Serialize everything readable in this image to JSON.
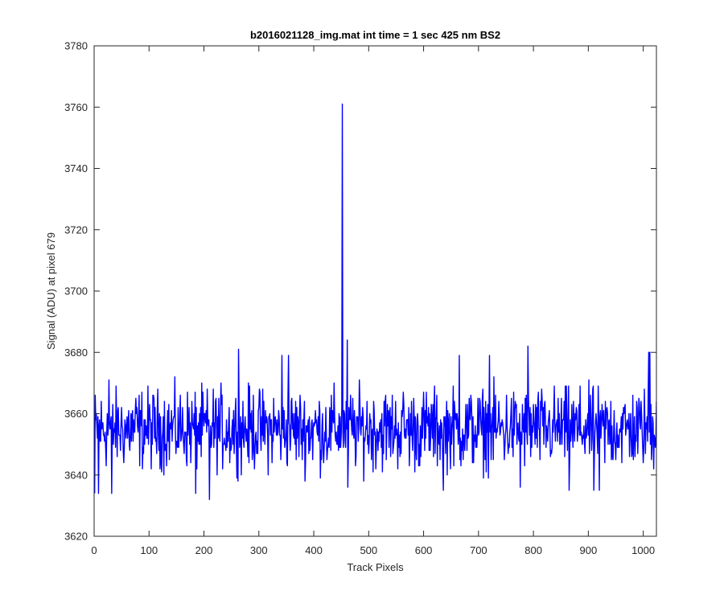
{
  "chart_data": {
    "type": "line",
    "title": "b2016021128_img.mat int time = 1 sec  425 nm BS2",
    "xlabel": "Track Pixels",
    "ylabel": "Signal (ADU) at pixel 679",
    "xlim": [
      0,
      1024
    ],
    "ylim": [
      3620,
      3780
    ],
    "xticks": [
      0,
      100,
      200,
      300,
      400,
      500,
      600,
      700,
      800,
      900,
      1000
    ],
    "yticks": [
      3620,
      3640,
      3660,
      3680,
      3700,
      3720,
      3740,
      3760,
      3780
    ],
    "grid": false,
    "legend": "none",
    "line_color": "#0000ff",
    "series": [
      {
        "x_start": 1,
        "x_step": 1,
        "count": 1024,
        "baseline": 3655,
        "noise_amplitude": 9,
        "notable_points": [
          {
            "x": 1,
            "y": 3634
          },
          {
            "x": 8,
            "y": 3634
          },
          {
            "x": 27,
            "y": 3671
          },
          {
            "x": 32,
            "y": 3634
          },
          {
            "x": 185,
            "y": 3634
          },
          {
            "x": 210,
            "y": 3632
          },
          {
            "x": 263,
            "y": 3681
          },
          {
            "x": 342,
            "y": 3679
          },
          {
            "x": 354,
            "y": 3679
          },
          {
            "x": 452,
            "y": 3761
          },
          {
            "x": 461,
            "y": 3684
          },
          {
            "x": 462,
            "y": 3636
          },
          {
            "x": 636,
            "y": 3635
          },
          {
            "x": 665,
            "y": 3679
          },
          {
            "x": 720,
            "y": 3679
          },
          {
            "x": 776,
            "y": 3636
          },
          {
            "x": 790,
            "y": 3682
          },
          {
            "x": 865,
            "y": 3635
          },
          {
            "x": 910,
            "y": 3635
          },
          {
            "x": 920,
            "y": 3635
          },
          {
            "x": 1010,
            "y": 3680
          },
          {
            "x": 1012,
            "y": 3680
          },
          {
            "x": 1024,
            "y": 3664
          }
        ]
      }
    ]
  }
}
